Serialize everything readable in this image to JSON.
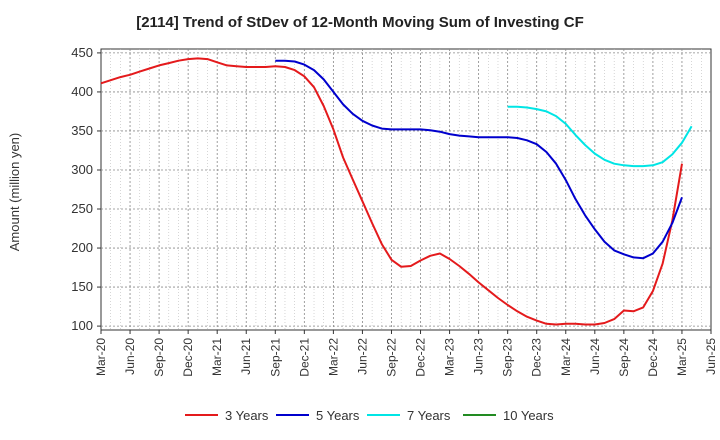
{
  "chart_data": {
    "type": "line",
    "title": "[2114]  Trend of StDev of 12-Month Moving Sum of Investing CF",
    "xlabel": "",
    "ylabel": "Amount (million yen)",
    "ylim": [
      95,
      455
    ],
    "yticks": [
      100,
      150,
      200,
      250,
      300,
      350,
      400,
      450
    ],
    "xticks": [
      "Mar-20",
      "Jun-20",
      "Sep-20",
      "Dec-20",
      "Mar-21",
      "Jun-21",
      "Sep-21",
      "Dec-21",
      "Mar-22",
      "Jun-22",
      "Sep-22",
      "Dec-22",
      "Mar-23",
      "Jun-23",
      "Sep-23",
      "Dec-23",
      "Mar-24",
      "Jun-24",
      "Sep-24",
      "Dec-24",
      "Mar-25",
      "Jun-25"
    ],
    "grid": true,
    "legend_position": "bottom",
    "series": [
      {
        "name": "3 Years",
        "color": "#e41a1c",
        "start": "Mar-20",
        "values": [
          411,
          415,
          419,
          422,
          426,
          430,
          434,
          437,
          440,
          442,
          443,
          442,
          438,
          434,
          433,
          432,
          432,
          432,
          433,
          432,
          428,
          420,
          406,
          382,
          352,
          316,
          288,
          260,
          232,
          205,
          185,
          176,
          177,
          184,
          190,
          193,
          186,
          177,
          167,
          156,
          146,
          136,
          127,
          119,
          112,
          107,
          103,
          102,
          103,
          103,
          102,
          102,
          104,
          109,
          120,
          119,
          124,
          145,
          180,
          235,
          308
        ]
      },
      {
        "name": "5 Years",
        "color": "#0000cd",
        "start": "Sep-21",
        "values": [
          440,
          440,
          439,
          435,
          428,
          416,
          400,
          384,
          372,
          363,
          357,
          353,
          352,
          352,
          352,
          352,
          351,
          349,
          346,
          344,
          343,
          342,
          342,
          342,
          342,
          341,
          338,
          333,
          323,
          308,
          287,
          263,
          242,
          224,
          208,
          197,
          192,
          188,
          187,
          193,
          208,
          232,
          265
        ]
      },
      {
        "name": "7 Years",
        "color": "#00e5e5",
        "start": "Sep-23",
        "values": [
          381,
          381,
          380,
          378,
          375,
          369,
          359,
          345,
          332,
          321,
          313,
          308,
          306,
          305,
          305,
          306,
          310,
          320,
          335,
          356
        ]
      },
      {
        "name": "10 Years",
        "color": "#228b22",
        "start": "Sep-23",
        "values": []
      }
    ]
  }
}
